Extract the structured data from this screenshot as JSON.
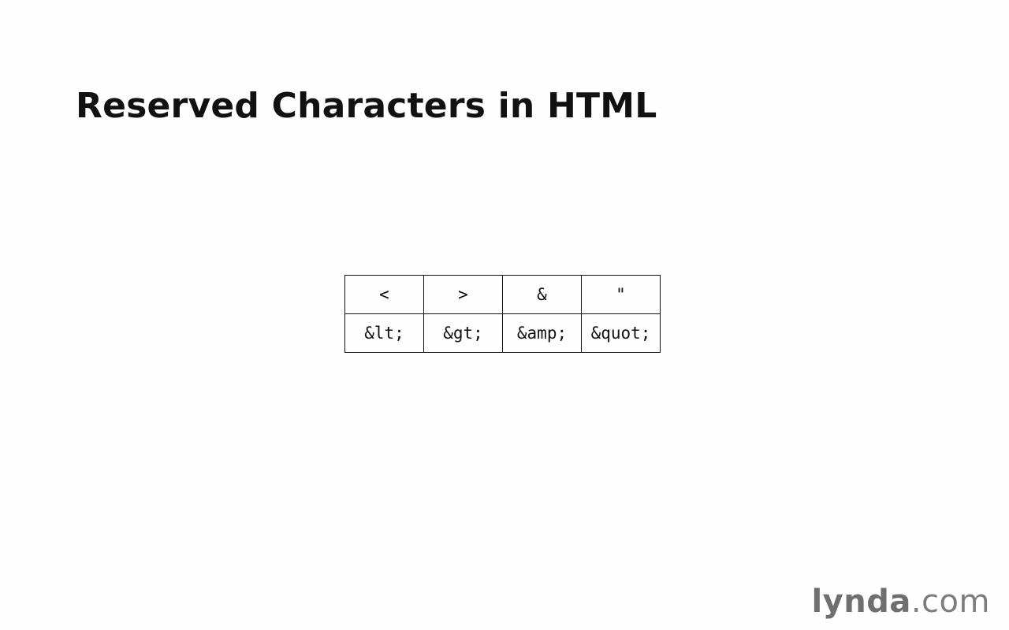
{
  "slide": {
    "title": "Reserved Characters in HTML"
  },
  "table": {
    "characters": [
      "<",
      ">",
      "&",
      "\""
    ],
    "entities": [
      "&lt;",
      "&gt;",
      "&amp;",
      "&quot;"
    ]
  },
  "logo": {
    "name": "lynda",
    "suffix": ".com"
  }
}
